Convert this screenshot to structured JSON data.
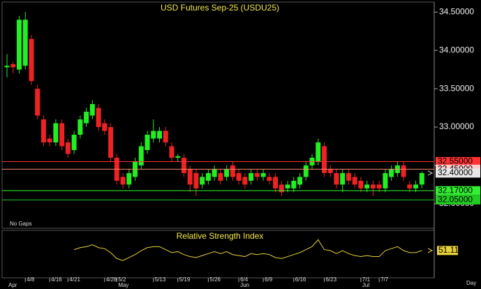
{
  "chart_data": {
    "type": "candlestick",
    "title": "USD Futures Sep-25 (USDU25)",
    "note": "No Gaps",
    "x_unit": "Day",
    "categories": [
      null,
      null,
      null,
      "4/8",
      null,
      null,
      null,
      "4/16",
      null,
      null,
      "4/21",
      null,
      null,
      null,
      null,
      null,
      "4/28",
      null,
      "5/2",
      null,
      null,
      null,
      null,
      null,
      "5/13",
      null,
      null,
      null,
      "5/19",
      null,
      null,
      null,
      null,
      "5/26",
      null,
      null,
      null,
      null,
      "6/4",
      null,
      null,
      null,
      "6/9",
      null,
      null,
      null,
      null,
      "6/16",
      null,
      null,
      null,
      null,
      "6/23",
      null,
      null,
      null,
      null,
      null,
      "7/1",
      null,
      null,
      "7/7",
      null,
      null,
      null,
      null,
      null,
      null,
      null
    ],
    "months": [
      "Apr",
      null,
      null,
      null,
      null,
      null,
      null,
      null,
      null,
      null,
      null,
      null,
      null,
      null,
      null,
      null,
      null,
      null,
      "May",
      null,
      null,
      null,
      null,
      null,
      null,
      null,
      null,
      null,
      null,
      null,
      null,
      null,
      null,
      null,
      null,
      null,
      null,
      null,
      "Jun",
      null,
      null,
      null,
      null,
      null,
      null,
      null,
      null,
      null,
      null,
      null,
      null,
      null,
      null,
      null,
      null,
      null,
      null,
      null,
      "Jul",
      null,
      null,
      null,
      null,
      null,
      null,
      null,
      null,
      null,
      null
    ],
    "open": [
      33.78,
      33.82,
      33.75,
      33.8,
      34.15,
      33.5,
      33.1,
      32.85,
      32.8,
      33.05,
      32.8,
      32.7,
      32.9,
      33.05,
      33.15,
      33.25,
      33.05,
      33.0,
      32.6,
      32.35,
      32.25,
      32.35,
      32.5,
      32.7,
      32.85,
      32.85,
      32.95,
      32.75,
      32.6,
      32.6,
      32.45,
      32.4,
      32.25,
      32.3,
      32.35,
      32.4,
      32.35,
      32.5,
      32.4,
      32.35,
      32.3,
      32.4,
      32.35,
      32.35,
      32.35,
      32.25,
      32.2,
      32.2,
      32.25,
      32.35,
      32.5,
      32.55,
      32.75,
      32.45,
      32.4,
      32.25,
      32.4,
      32.35,
      32.3,
      32.2,
      32.25,
      32.25,
      32.2,
      32.35,
      32.4,
      32.5,
      32.25,
      32.2,
      32.25
    ],
    "high": [
      33.95,
      33.85,
      34.45,
      34.5,
      34.2,
      33.55,
      33.15,
      32.9,
      33.1,
      33.1,
      32.85,
      32.95,
      33.15,
      33.25,
      33.35,
      33.3,
      33.1,
      33.05,
      32.65,
      32.4,
      32.45,
      32.6,
      32.8,
      32.95,
      33.1,
      33.0,
      33.0,
      32.8,
      32.65,
      32.65,
      32.5,
      32.45,
      32.4,
      32.45,
      32.5,
      32.45,
      32.5,
      32.55,
      32.45,
      32.4,
      32.45,
      32.45,
      32.45,
      32.4,
      32.4,
      32.3,
      32.3,
      32.35,
      32.4,
      32.55,
      32.65,
      32.85,
      32.8,
      32.5,
      32.45,
      32.45,
      32.45,
      32.4,
      32.35,
      32.3,
      32.3,
      32.3,
      32.45,
      32.5,
      32.55,
      32.55,
      32.3,
      32.3,
      32.42
    ],
    "low": [
      33.65,
      33.7,
      33.7,
      33.75,
      33.55,
      33.1,
      32.75,
      32.75,
      32.75,
      32.7,
      32.6,
      32.65,
      32.85,
      33.0,
      33.1,
      32.95,
      32.9,
      32.55,
      32.25,
      32.2,
      32.2,
      32.3,
      32.45,
      32.65,
      32.8,
      32.8,
      32.75,
      32.55,
      32.55,
      32.35,
      32.15,
      32.1,
      32.2,
      32.25,
      32.3,
      32.25,
      32.3,
      32.3,
      32.25,
      32.2,
      32.25,
      32.3,
      32.3,
      32.25,
      32.15,
      32.1,
      32.15,
      32.15,
      32.2,
      32.3,
      32.45,
      32.5,
      32.35,
      32.35,
      32.2,
      32.15,
      32.25,
      32.2,
      32.15,
      32.15,
      32.1,
      32.15,
      32.15,
      32.3,
      32.35,
      32.3,
      32.15,
      32.15,
      32.2
    ],
    "close": [
      33.8,
      33.78,
      34.4,
      34.4,
      33.6,
      33.15,
      32.8,
      32.8,
      33.05,
      32.75,
      32.65,
      32.9,
      33.1,
      33.2,
      33.3,
      33.0,
      32.95,
      32.6,
      32.3,
      32.25,
      32.4,
      32.55,
      32.75,
      32.9,
      32.95,
      32.95,
      32.8,
      32.6,
      32.62,
      32.4,
      32.25,
      32.2,
      32.35,
      32.4,
      32.45,
      32.3,
      32.45,
      32.35,
      32.3,
      32.25,
      32.4,
      32.35,
      32.4,
      32.3,
      32.2,
      32.15,
      32.25,
      32.3,
      32.35,
      32.5,
      32.6,
      32.8,
      32.4,
      32.4,
      32.25,
      32.4,
      32.3,
      32.25,
      32.2,
      32.25,
      32.2,
      32.2,
      32.4,
      32.45,
      32.5,
      32.35,
      32.2,
      32.25,
      32.4
    ],
    "up_color": "#22ee22",
    "down_color": "#ee2222",
    "ylim": [
      31.68,
      34.63
    ],
    "yticks": [
      {
        "value": 34.5,
        "label": "34.50000"
      },
      {
        "value": 34.0,
        "label": "34.00000"
      },
      {
        "value": 33.5,
        "label": "33.50000"
      },
      {
        "value": 33.0,
        "label": "33.00000"
      },
      {
        "value": 32.5,
        "label": "32.50000"
      },
      {
        "value": 32.0,
        "label": "32.00000"
      }
    ],
    "levels": [
      {
        "value": 32.55,
        "label": "32.55000",
        "color": "#ff3333",
        "label_bg": "#ff3333",
        "line": true
      },
      {
        "value": 32.45,
        "label": "32.45000",
        "color": "#ff8866",
        "label_bg": "#ffcccc",
        "line": true
      },
      {
        "value": 32.4,
        "label": "32.40000",
        "color": "#dddddd",
        "label_bg": "#e8e8e8",
        "line": false
      },
      {
        "value": 32.17,
        "label": "32.17000",
        "color": "#33ff33",
        "label_bg": "#33ee33",
        "line": true
      },
      {
        "value": 32.05,
        "label": "32.05000",
        "color": "#22cc22",
        "label_bg": "#22cc22",
        "line": true
      }
    ],
    "rsi": {
      "title": "Relative Strength Index",
      "color": "#e8d23a",
      "ylim": [
        25,
        70
      ],
      "last": 51.11,
      "values": [
        null,
        null,
        null,
        null,
        null,
        null,
        null,
        null,
        null,
        null,
        null,
        52,
        54,
        55,
        57,
        54,
        53,
        49,
        43,
        41,
        44,
        47,
        51,
        54,
        55,
        55,
        52,
        49,
        50,
        47,
        45,
        44,
        46,
        48,
        50,
        48,
        50,
        47,
        46,
        45,
        48,
        47,
        48,
        47,
        44,
        43,
        45,
        47,
        49,
        52,
        55,
        62,
        52,
        51,
        48,
        51,
        48,
        46,
        45,
        46,
        45,
        45,
        51,
        53,
        55,
        51,
        49,
        49,
        51.11
      ]
    }
  }
}
